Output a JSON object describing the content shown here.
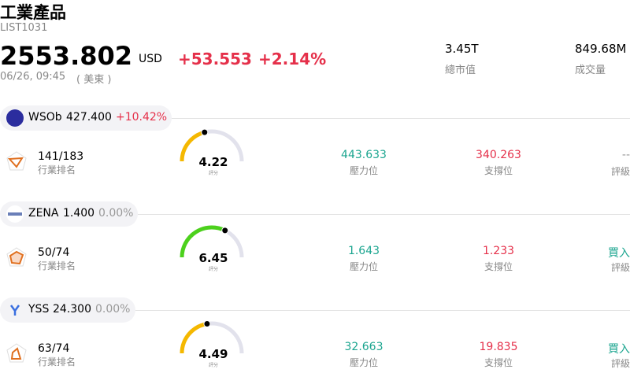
{
  "header": {
    "title": "工業產品",
    "code": "LIST1031",
    "price": "2553.802",
    "currency": "USD",
    "change": "+53.553",
    "change_pct": "+2.14%",
    "time": "06/26, 09:45",
    "timezone": "( 美東 )"
  },
  "stats": [
    {
      "value": "3.45T",
      "label": "總市值"
    },
    {
      "value": "849.68M",
      "label": "成交量"
    }
  ],
  "items": [
    {
      "name": "WSOb",
      "price": "427.400",
      "change": "+10.42%",
      "change_color": "#e5304a",
      "rank": "141/183",
      "rank_label": "行業排名",
      "score": 4.22,
      "score_color": "#f5b800",
      "score_label": "評分",
      "resistance": "443.633",
      "resistance_label": "壓力位",
      "support": "340.263",
      "support_label": "支撐位",
      "rating": "--",
      "rating_color": "#999999",
      "rating_label": "評級"
    },
    {
      "name": "ZENA",
      "price": "1.400",
      "change": "0.00%",
      "change_color": "#999999",
      "rank": "50/74",
      "rank_label": "行業排名",
      "score": 6.45,
      "score_color": "#4cd11c",
      "score_label": "評分",
      "resistance": "1.643",
      "resistance_label": "壓力位",
      "support": "1.233",
      "support_label": "支撐位",
      "rating": "買入",
      "rating_color": "#1ba58f",
      "rating_label": "評級"
    },
    {
      "name": "YSS",
      "price": "24.300",
      "change": "0.00%",
      "change_color": "#999999",
      "rank": "63/74",
      "rank_label": "行業排名",
      "score": 4.49,
      "score_color": "#f5b800",
      "score_label": "評分",
      "resistance": "32.663",
      "resistance_label": "壓力位",
      "support": "19.835",
      "support_label": "支撐位",
      "rating": "買入",
      "rating_color": "#1ba58f",
      "rating_label": "評級"
    }
  ]
}
